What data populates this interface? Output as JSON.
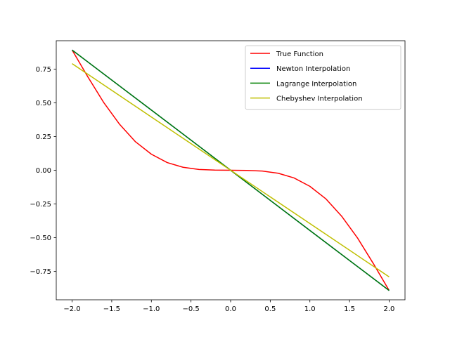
{
  "chart_data": {
    "type": "line",
    "title": "",
    "xlabel": "",
    "ylabel": "",
    "xlim": [
      -2.2,
      2.2
    ],
    "ylim": [
      -0.96,
      0.96
    ],
    "x_ticks": [
      -2.0,
      -1.5,
      -1.0,
      -0.5,
      0.0,
      0.5,
      1.0,
      1.5,
      2.0
    ],
    "x_tick_labels": [
      "−2.0",
      "−1.5",
      "−1.0",
      "−0.5",
      "0.0",
      "0.5",
      "1.0",
      "1.5",
      "2.0"
    ],
    "y_ticks": [
      0.75,
      0.5,
      0.25,
      0.0,
      -0.25,
      -0.5,
      -0.75
    ],
    "y_tick_labels": [
      "0.75",
      "0.50",
      "0.25",
      "0.00",
      "−0.25",
      "−0.50",
      "−0.75"
    ],
    "grid": false,
    "legend_position": "top-right",
    "series": [
      {
        "name": "True Function",
        "color": "#ff0000",
        "x": [
          -2.0,
          -1.8,
          -1.6,
          -1.4,
          -1.2,
          -1.0,
          -0.8,
          -0.6,
          -0.4,
          -0.2,
          0.0,
          0.2,
          0.4,
          0.6,
          0.8,
          1.0,
          1.2,
          1.4,
          1.6,
          1.8,
          2.0
        ],
        "y": [
          0.891,
          0.691,
          0.501,
          0.34,
          0.211,
          0.119,
          0.057,
          0.022,
          0.006,
          0.001,
          0.0,
          -0.001,
          -0.006,
          -0.022,
          -0.057,
          -0.119,
          -0.211,
          -0.34,
          -0.501,
          -0.691,
          -0.891
        ]
      },
      {
        "name": "Newton Interpolation",
        "color": "#0000ff",
        "x": [
          -2.0,
          -1.0,
          0.0,
          1.0,
          2.0
        ],
        "y": [
          0.891,
          0.446,
          0.0,
          -0.446,
          -0.891
        ]
      },
      {
        "name": "Lagrange Interpolation",
        "color": "#008000",
        "x": [
          -2.0,
          -1.0,
          0.0,
          1.0,
          2.0
        ],
        "y": [
          0.891,
          0.446,
          0.0,
          -0.446,
          -0.891
        ]
      },
      {
        "name": "Chebyshev Interpolation",
        "color": "#bfbf00",
        "x": [
          -2.0,
          -1.0,
          0.0,
          1.0,
          2.0
        ],
        "y": [
          0.79,
          0.395,
          0.0,
          -0.395,
          -0.79
        ]
      }
    ]
  }
}
